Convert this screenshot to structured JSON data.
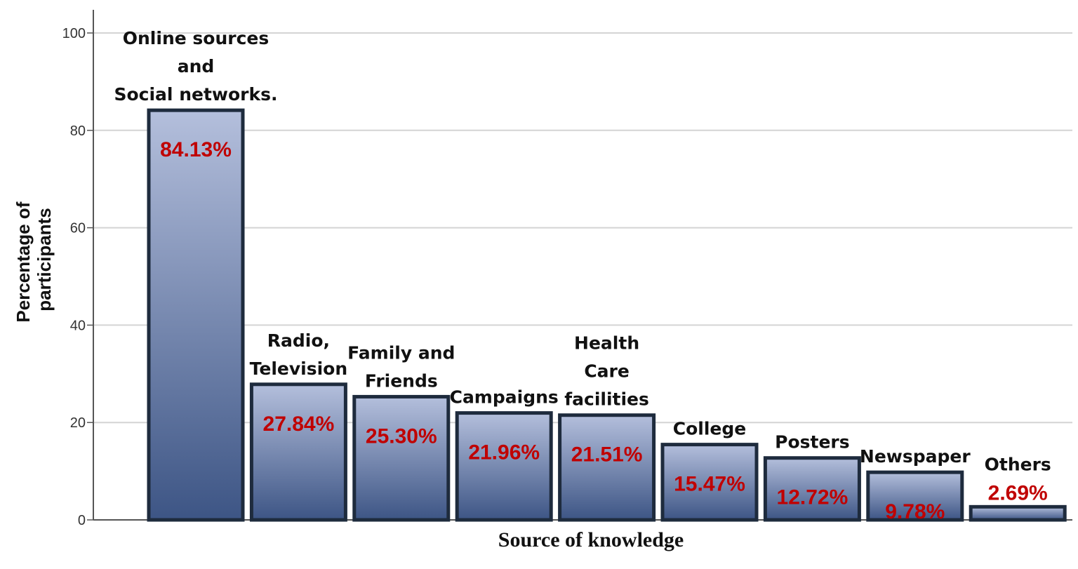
{
  "chart_data": {
    "type": "bar",
    "categories": [
      [
        "Online sources",
        "and",
        "Social networks."
      ],
      [
        "Radio,",
        "Television"
      ],
      [
        "Family and",
        "Friends"
      ],
      [
        "Campaigns"
      ],
      [
        "Health",
        "Care",
        "facilities"
      ],
      [
        "College"
      ],
      [
        "Posters"
      ],
      [
        "Newspaper"
      ],
      [
        "Others"
      ]
    ],
    "values": [
      84.13,
      27.84,
      25.3,
      21.96,
      21.51,
      15.47,
      12.72,
      9.78,
      2.69
    ],
    "value_labels": [
      "84.13%",
      "27.84%",
      "25.30%",
      "21.96%",
      "21.51%",
      "15.47%",
      "12.72%",
      "9.78%",
      "2.69%"
    ],
    "xlabel": "Source of knowledge",
    "ylabel": [
      "Percentage of",
      "participants"
    ],
    "ylim": [
      0,
      100
    ],
    "yticks": [
      0,
      20,
      40,
      60,
      80,
      100
    ],
    "grid": true,
    "colors": {
      "bar_top": "#b4bfdc",
      "bar_bottom": "#3d5585",
      "bar_border": "#1e2b3d",
      "value_text": "#c00000",
      "grid": "#d4d4d4",
      "axis": "#555555"
    }
  }
}
